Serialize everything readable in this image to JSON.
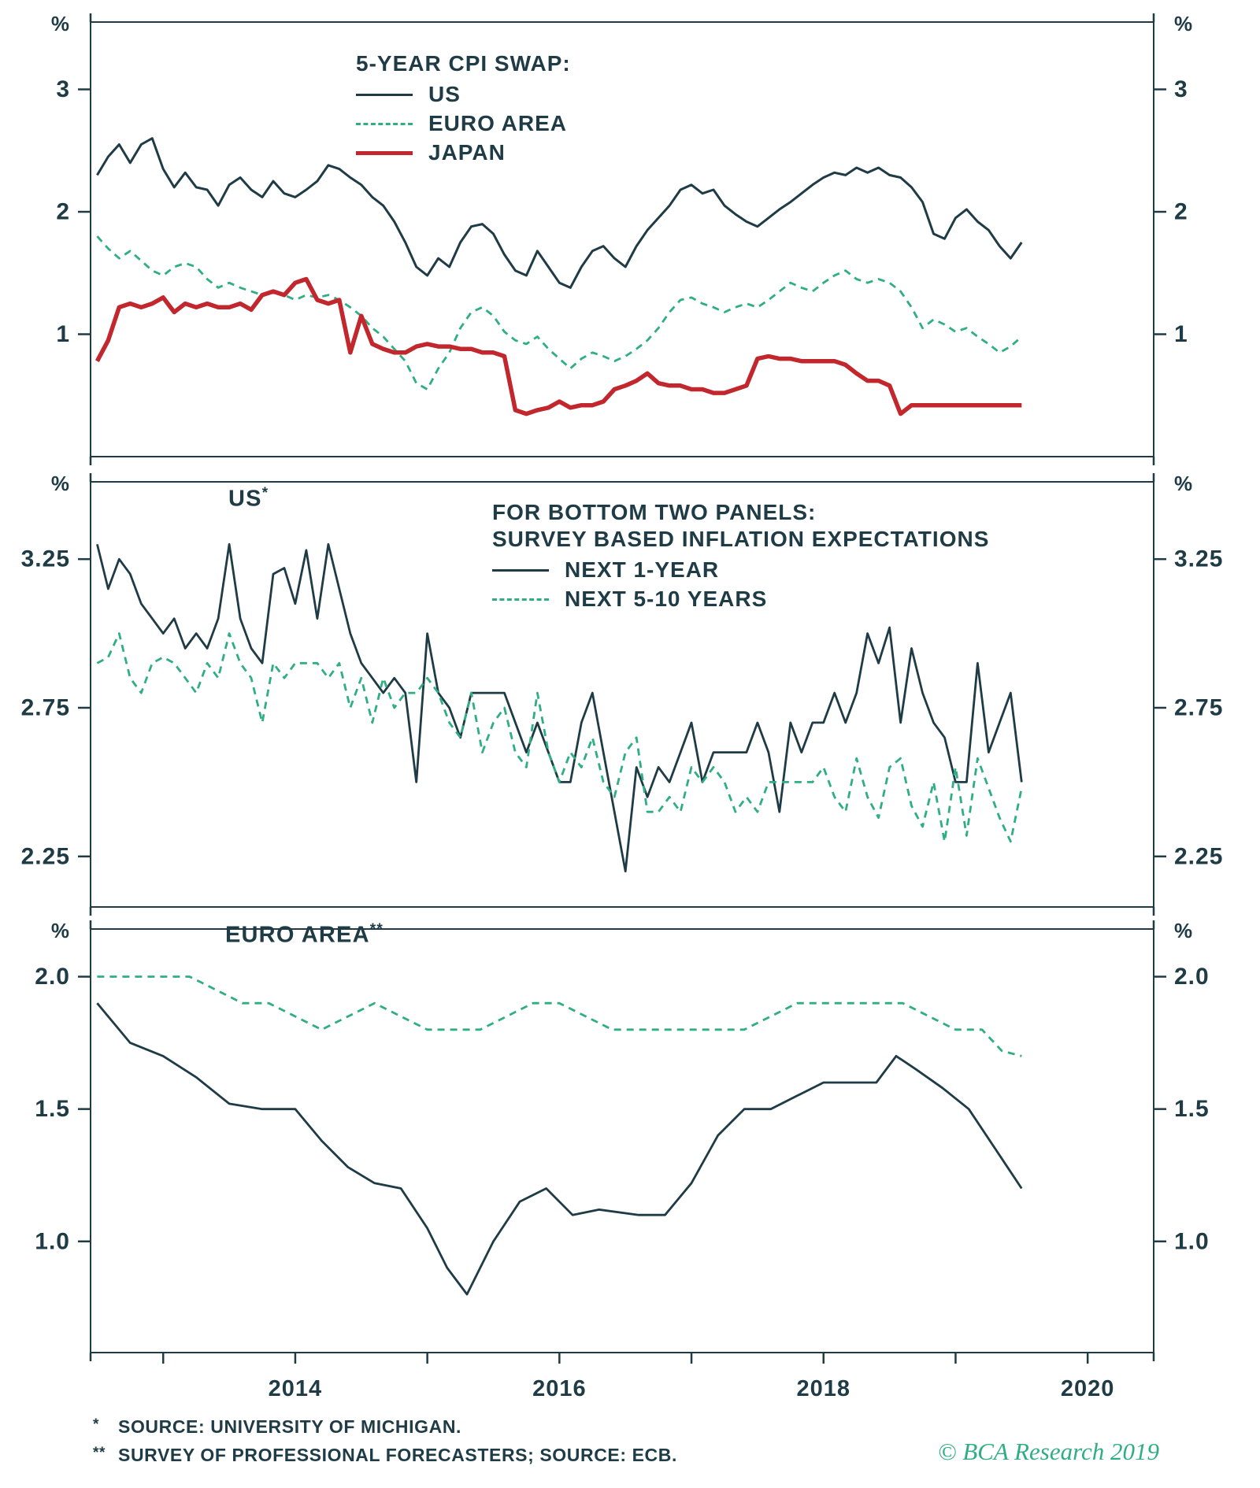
{
  "colors": {
    "background": "#ffffff",
    "text": "#1e3b46",
    "axis": "#1e3b46",
    "us": "#1e3b46",
    "euro_area": "#2fae84",
    "japan": "#c1272d",
    "brand": "#2fae84"
  },
  "x_axis": {
    "range": [
      2012.45,
      2020.5
    ],
    "tick_years": [
      2013,
      2014,
      2015,
      2016,
      2017,
      2018,
      2019,
      2020
    ],
    "labels": [
      {
        "text": "2014",
        "x": 2014
      },
      {
        "text": "2016",
        "x": 2016
      },
      {
        "text": "2018",
        "x": 2018
      },
      {
        "text": "2020",
        "x": 2020
      }
    ]
  },
  "chart_data": [
    {
      "type": "line",
      "panel": "top",
      "unit_left": "%",
      "unit_right": "%",
      "ylim": [
        0,
        3.55
      ],
      "yticks": [
        {
          "value": 3,
          "label": "3"
        },
        {
          "value": 2,
          "label": "2"
        },
        {
          "value": 1,
          "label": "1"
        }
      ],
      "legend": {
        "title": "5-YEAR CPI SWAP:"
      },
      "series": [
        {
          "name": "US",
          "color": "#1e3b46",
          "width": 3,
          "dash": false,
          "x_start": 2012.5,
          "x_step": 0.0833333,
          "values": [
            2.3,
            2.45,
            2.55,
            2.4,
            2.55,
            2.6,
            2.35,
            2.2,
            2.32,
            2.2,
            2.18,
            2.05,
            2.22,
            2.28,
            2.18,
            2.12,
            2.25,
            2.15,
            2.12,
            2.18,
            2.25,
            2.38,
            2.35,
            2.28,
            2.22,
            2.12,
            2.05,
            1.92,
            1.75,
            1.55,
            1.48,
            1.62,
            1.55,
            1.75,
            1.88,
            1.9,
            1.82,
            1.65,
            1.52,
            1.48,
            1.68,
            1.55,
            1.42,
            1.38,
            1.55,
            1.68,
            1.72,
            1.62,
            1.55,
            1.72,
            1.85,
            1.95,
            2.05,
            2.18,
            2.22,
            2.15,
            2.18,
            2.05,
            1.98,
            1.92,
            1.88,
            1.95,
            2.02,
            2.08,
            2.15,
            2.22,
            2.28,
            2.32,
            2.3,
            2.36,
            2.32,
            2.36,
            2.3,
            2.28,
            2.2,
            2.08,
            1.82,
            1.78,
            1.95,
            2.02,
            1.92,
            1.85,
            1.72,
            1.62,
            1.75
          ]
        },
        {
          "name": "EURO AREA",
          "color": "#2fae84",
          "width": 2.8,
          "dash": true,
          "x_start": 2012.5,
          "x_step": 0.0833333,
          "values": [
            1.8,
            1.7,
            1.62,
            1.68,
            1.6,
            1.52,
            1.48,
            1.55,
            1.58,
            1.55,
            1.45,
            1.38,
            1.42,
            1.38,
            1.35,
            1.32,
            1.35,
            1.32,
            1.28,
            1.32,
            1.3,
            1.32,
            1.28,
            1.22,
            1.15,
            1.05,
            0.98,
            0.88,
            0.78,
            0.6,
            0.55,
            0.72,
            0.85,
            1.05,
            1.18,
            1.22,
            1.15,
            1.02,
            0.95,
            0.92,
            0.98,
            0.88,
            0.8,
            0.72,
            0.8,
            0.85,
            0.82,
            0.78,
            0.82,
            0.88,
            0.95,
            1.05,
            1.18,
            1.28,
            1.3,
            1.25,
            1.22,
            1.18,
            1.22,
            1.25,
            1.22,
            1.28,
            1.35,
            1.42,
            1.38,
            1.35,
            1.42,
            1.48,
            1.52,
            1.45,
            1.42,
            1.45,
            1.42,
            1.35,
            1.22,
            1.05,
            1.12,
            1.08,
            1.02,
            1.05,
            0.98,
            0.92,
            0.85,
            0.9,
            0.98
          ]
        },
        {
          "name": "JAPAN",
          "color": "#c1272d",
          "width": 5.5,
          "dash": false,
          "x_start": 2012.5,
          "x_step": 0.0833333,
          "values": [
            0.78,
            0.95,
            1.22,
            1.25,
            1.22,
            1.25,
            1.3,
            1.18,
            1.25,
            1.22,
            1.25,
            1.22,
            1.22,
            1.25,
            1.2,
            1.32,
            1.35,
            1.32,
            1.42,
            1.45,
            1.28,
            1.25,
            1.28,
            0.85,
            1.15,
            0.92,
            0.88,
            0.85,
            0.85,
            0.9,
            0.92,
            0.9,
            0.9,
            0.88,
            0.88,
            0.85,
            0.85,
            0.82,
            0.38,
            0.35,
            0.38,
            0.4,
            0.45,
            0.4,
            0.42,
            0.42,
            0.45,
            0.55,
            0.58,
            0.62,
            0.68,
            0.6,
            0.58,
            0.58,
            0.55,
            0.55,
            0.52,
            0.52,
            0.55,
            0.58,
            0.8,
            0.82,
            0.8,
            0.8,
            0.78,
            0.78,
            0.78,
            0.78,
            0.75,
            0.68,
            0.62,
            0.62,
            0.58,
            0.35,
            0.42,
            0.42,
            0.42,
            0.42,
            0.42,
            0.42,
            0.42,
            0.42,
            0.42,
            0.42,
            0.42
          ]
        }
      ]
    },
    {
      "type": "line",
      "panel": "middle",
      "title": "US",
      "title_marker": "*",
      "unit_left": "%",
      "unit_right": "%",
      "ylim": [
        2.08,
        3.51
      ],
      "yticks": [
        {
          "value": 3.25,
          "label": "3.25"
        },
        {
          "value": 2.75,
          "label": "2.75"
        },
        {
          "value": 2.25,
          "label": "2.25"
        }
      ],
      "legend": {
        "title_line1": "FOR BOTTOM TWO PANELS:",
        "title_line2": "SURVEY BASED INFLATION EXPECTATIONS"
      },
      "series": [
        {
          "name": "NEXT 1-YEAR",
          "color": "#1e3b46",
          "width": 2.8,
          "dash": false,
          "x_start": 2012.5,
          "x_step": 0.0833333,
          "values": [
            3.3,
            3.15,
            3.25,
            3.2,
            3.1,
            3.05,
            3.0,
            3.05,
            2.95,
            3.0,
            2.95,
            3.05,
            3.3,
            3.05,
            2.95,
            2.9,
            3.2,
            3.22,
            3.1,
            3.28,
            3.05,
            3.3,
            3.15,
            3.0,
            2.9,
            2.85,
            2.8,
            2.85,
            2.8,
            2.5,
            3.0,
            2.8,
            2.75,
            2.65,
            2.8,
            2.8,
            2.8,
            2.8,
            2.7,
            2.6,
            2.7,
            2.6,
            2.5,
            2.5,
            2.7,
            2.8,
            2.6,
            2.4,
            2.2,
            2.55,
            2.45,
            2.55,
            2.5,
            2.6,
            2.7,
            2.5,
            2.6,
            2.6,
            2.6,
            2.6,
            2.7,
            2.6,
            2.4,
            2.7,
            2.6,
            2.7,
            2.7,
            2.8,
            2.7,
            2.8,
            3.0,
            2.9,
            3.02,
            2.7,
            2.95,
            2.8,
            2.7,
            2.65,
            2.5,
            2.5,
            2.9,
            2.6,
            2.7,
            2.8,
            2.5
          ]
        },
        {
          "name": "NEXT 5-10 YEARS",
          "color": "#2fae84",
          "width": 2.8,
          "dash": true,
          "x_start": 2012.5,
          "x_step": 0.0833333,
          "values": [
            2.9,
            2.92,
            3.0,
            2.85,
            2.8,
            2.9,
            2.92,
            2.9,
            2.85,
            2.8,
            2.9,
            2.85,
            3.0,
            2.9,
            2.85,
            2.7,
            2.9,
            2.85,
            2.9,
            2.9,
            2.9,
            2.85,
            2.9,
            2.75,
            2.85,
            2.7,
            2.85,
            2.75,
            2.8,
            2.8,
            2.85,
            2.8,
            2.7,
            2.65,
            2.8,
            2.6,
            2.7,
            2.75,
            2.6,
            2.55,
            2.8,
            2.6,
            2.5,
            2.6,
            2.55,
            2.65,
            2.5,
            2.45,
            2.6,
            2.65,
            2.4,
            2.4,
            2.45,
            2.4,
            2.55,
            2.5,
            2.55,
            2.5,
            2.4,
            2.45,
            2.4,
            2.5,
            2.5,
            2.5,
            2.5,
            2.5,
            2.55,
            2.45,
            2.4,
            2.58,
            2.45,
            2.38,
            2.55,
            2.58,
            2.42,
            2.35,
            2.5,
            2.3,
            2.55,
            2.32,
            2.58,
            2.48,
            2.38,
            2.3,
            2.48
          ]
        }
      ]
    },
    {
      "type": "line",
      "panel": "bottom",
      "title": "EURO AREA",
      "title_marker": "**",
      "unit_left": "%",
      "unit_right": "%",
      "ylim": [
        0.58,
        2.18
      ],
      "yticks": [
        {
          "value": 2.0,
          "label": "2.0"
        },
        {
          "value": 1.5,
          "label": "1.5"
        },
        {
          "value": 1.0,
          "label": "1.0"
        }
      ],
      "series": [
        {
          "name": "NEXT 1-YEAR",
          "color": "#1e3b46",
          "width": 2.8,
          "dash": false,
          "x": [
            2012.5,
            2012.75,
            2013.0,
            2013.25,
            2013.5,
            2013.75,
            2014.0,
            2014.2,
            2014.4,
            2014.6,
            2014.8,
            2015.0,
            2015.15,
            2015.3,
            2015.5,
            2015.7,
            2015.9,
            2016.1,
            2016.3,
            2016.6,
            2016.8,
            2017.0,
            2017.2,
            2017.4,
            2017.6,
            2017.8,
            2018.0,
            2018.2,
            2018.4,
            2018.55,
            2018.7,
            2018.9,
            2019.1,
            2019.3,
            2019.5
          ],
          "values": [
            1.9,
            1.75,
            1.7,
            1.62,
            1.52,
            1.5,
            1.5,
            1.38,
            1.28,
            1.22,
            1.2,
            1.05,
            0.9,
            0.8,
            1.0,
            1.15,
            1.2,
            1.1,
            1.12,
            1.1,
            1.1,
            1.22,
            1.4,
            1.5,
            1.5,
            1.55,
            1.6,
            1.6,
            1.6,
            1.7,
            1.65,
            1.58,
            1.5,
            1.35,
            1.2
          ]
        },
        {
          "name": "NEXT 5-10 YEARS",
          "color": "#2fae84",
          "width": 2.8,
          "dash": true,
          "x": [
            2012.5,
            2012.75,
            2013.0,
            2013.2,
            2013.4,
            2013.6,
            2013.8,
            2014.0,
            2014.2,
            2014.4,
            2014.6,
            2014.8,
            2015.0,
            2015.2,
            2015.4,
            2015.6,
            2015.8,
            2016.0,
            2016.2,
            2016.4,
            2016.6,
            2016.8,
            2017.0,
            2017.2,
            2017.4,
            2017.6,
            2017.8,
            2018.0,
            2018.2,
            2018.4,
            2018.6,
            2018.8,
            2019.0,
            2019.2,
            2019.35,
            2019.5
          ],
          "values": [
            2.0,
            2.0,
            2.0,
            2.0,
            1.95,
            1.9,
            1.9,
            1.85,
            1.8,
            1.85,
            1.9,
            1.85,
            1.8,
            1.8,
            1.8,
            1.85,
            1.9,
            1.9,
            1.85,
            1.8,
            1.8,
            1.8,
            1.8,
            1.8,
            1.8,
            1.85,
            1.9,
            1.9,
            1.9,
            1.9,
            1.9,
            1.85,
            1.8,
            1.8,
            1.72,
            1.7
          ]
        }
      ]
    }
  ],
  "footnotes": [
    {
      "marker": "*",
      "text": "SOURCE: UNIVERSITY OF MICHIGAN."
    },
    {
      "marker": "**",
      "text": "SURVEY OF PROFESSIONAL FORECASTERS; SOURCE: ECB."
    }
  ],
  "footer": {
    "copyright": "© BCA Research 2019"
  }
}
